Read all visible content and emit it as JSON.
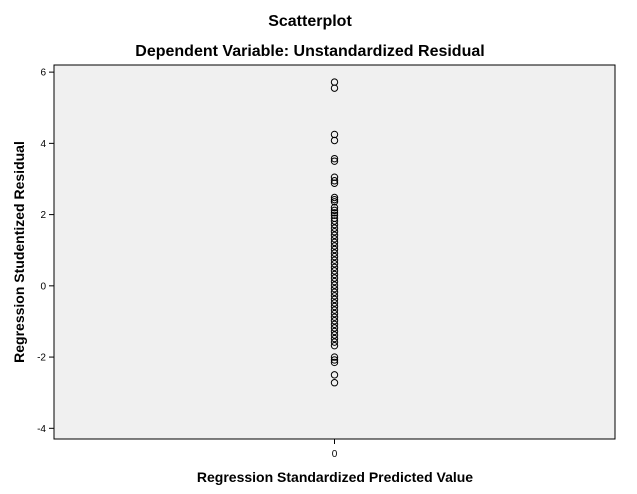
{
  "chart_data": {
    "type": "scatter",
    "title": "Scatterplot",
    "subtitle": "Dependent Variable: Unstandardized Residual",
    "xlabel": "Regression Standardized Predicted Value",
    "ylabel": "Regression Studentized Residual",
    "xlim": [
      -1,
      1
    ],
    "ylim": [
      -4.3,
      6.2
    ],
    "x_ticks": [
      0
    ],
    "x_tick_labels": [
      "0"
    ],
    "y_ticks": [
      -4,
      -2,
      0,
      2,
      4,
      6
    ],
    "y_tick_labels": [
      "-4",
      "-2",
      "0",
      "2",
      "4",
      "6"
    ],
    "grid": false,
    "legend": "none",
    "plot_background": "#f0f0f0",
    "marker_color": "#000000",
    "points": [
      {
        "x": 0,
        "y": 5.72
      },
      {
        "x": 0,
        "y": 5.55
      },
      {
        "x": 0,
        "y": 4.25
      },
      {
        "x": 0,
        "y": 4.08
      },
      {
        "x": 0,
        "y": 3.57
      },
      {
        "x": 0,
        "y": 3.5
      },
      {
        "x": 0,
        "y": 3.05
      },
      {
        "x": 0,
        "y": 2.95
      },
      {
        "x": 0,
        "y": 2.88
      },
      {
        "x": 0,
        "y": 2.48
      },
      {
        "x": 0,
        "y": 2.42
      },
      {
        "x": 0,
        "y": 2.36
      },
      {
        "x": 0,
        "y": 2.2
      },
      {
        "x": 0,
        "y": 2.12
      },
      {
        "x": 0,
        "y": 2.05
      },
      {
        "x": 0,
        "y": 1.98
      },
      {
        "x": 0,
        "y": 1.9
      },
      {
        "x": 0,
        "y": 1.82
      },
      {
        "x": 0,
        "y": 1.72
      },
      {
        "x": 0,
        "y": 1.62
      },
      {
        "x": 0,
        "y": 1.52
      },
      {
        "x": 0,
        "y": 1.42
      },
      {
        "x": 0,
        "y": 1.32
      },
      {
        "x": 0,
        "y": 1.22
      },
      {
        "x": 0,
        "y": 1.12
      },
      {
        "x": 0,
        "y": 1.02
      },
      {
        "x": 0,
        "y": 0.92
      },
      {
        "x": 0,
        "y": 0.82
      },
      {
        "x": 0,
        "y": 0.72
      },
      {
        "x": 0,
        "y": 0.62
      },
      {
        "x": 0,
        "y": 0.52
      },
      {
        "x": 0,
        "y": 0.42
      },
      {
        "x": 0,
        "y": 0.32
      },
      {
        "x": 0,
        "y": 0.22
      },
      {
        "x": 0,
        "y": 0.12
      },
      {
        "x": 0,
        "y": 0.02
      },
      {
        "x": 0,
        "y": -0.08
      },
      {
        "x": 0,
        "y": -0.18
      },
      {
        "x": 0,
        "y": -0.28
      },
      {
        "x": 0,
        "y": -0.38
      },
      {
        "x": 0,
        "y": -0.48
      },
      {
        "x": 0,
        "y": -0.58
      },
      {
        "x": 0,
        "y": -0.68
      },
      {
        "x": 0,
        "y": -0.78
      },
      {
        "x": 0,
        "y": -0.88
      },
      {
        "x": 0,
        "y": -0.98
      },
      {
        "x": 0,
        "y": -1.08
      },
      {
        "x": 0,
        "y": -1.18
      },
      {
        "x": 0,
        "y": -1.28
      },
      {
        "x": 0,
        "y": -1.38
      },
      {
        "x": 0,
        "y": -1.48
      },
      {
        "x": 0,
        "y": -1.58
      },
      {
        "x": 0,
        "y": -1.68
      },
      {
        "x": 0,
        "y": -2.0
      },
      {
        "x": 0,
        "y": -2.08
      },
      {
        "x": 0,
        "y": -2.15
      },
      {
        "x": 0,
        "y": -2.5
      },
      {
        "x": 0,
        "y": -2.72
      }
    ]
  }
}
